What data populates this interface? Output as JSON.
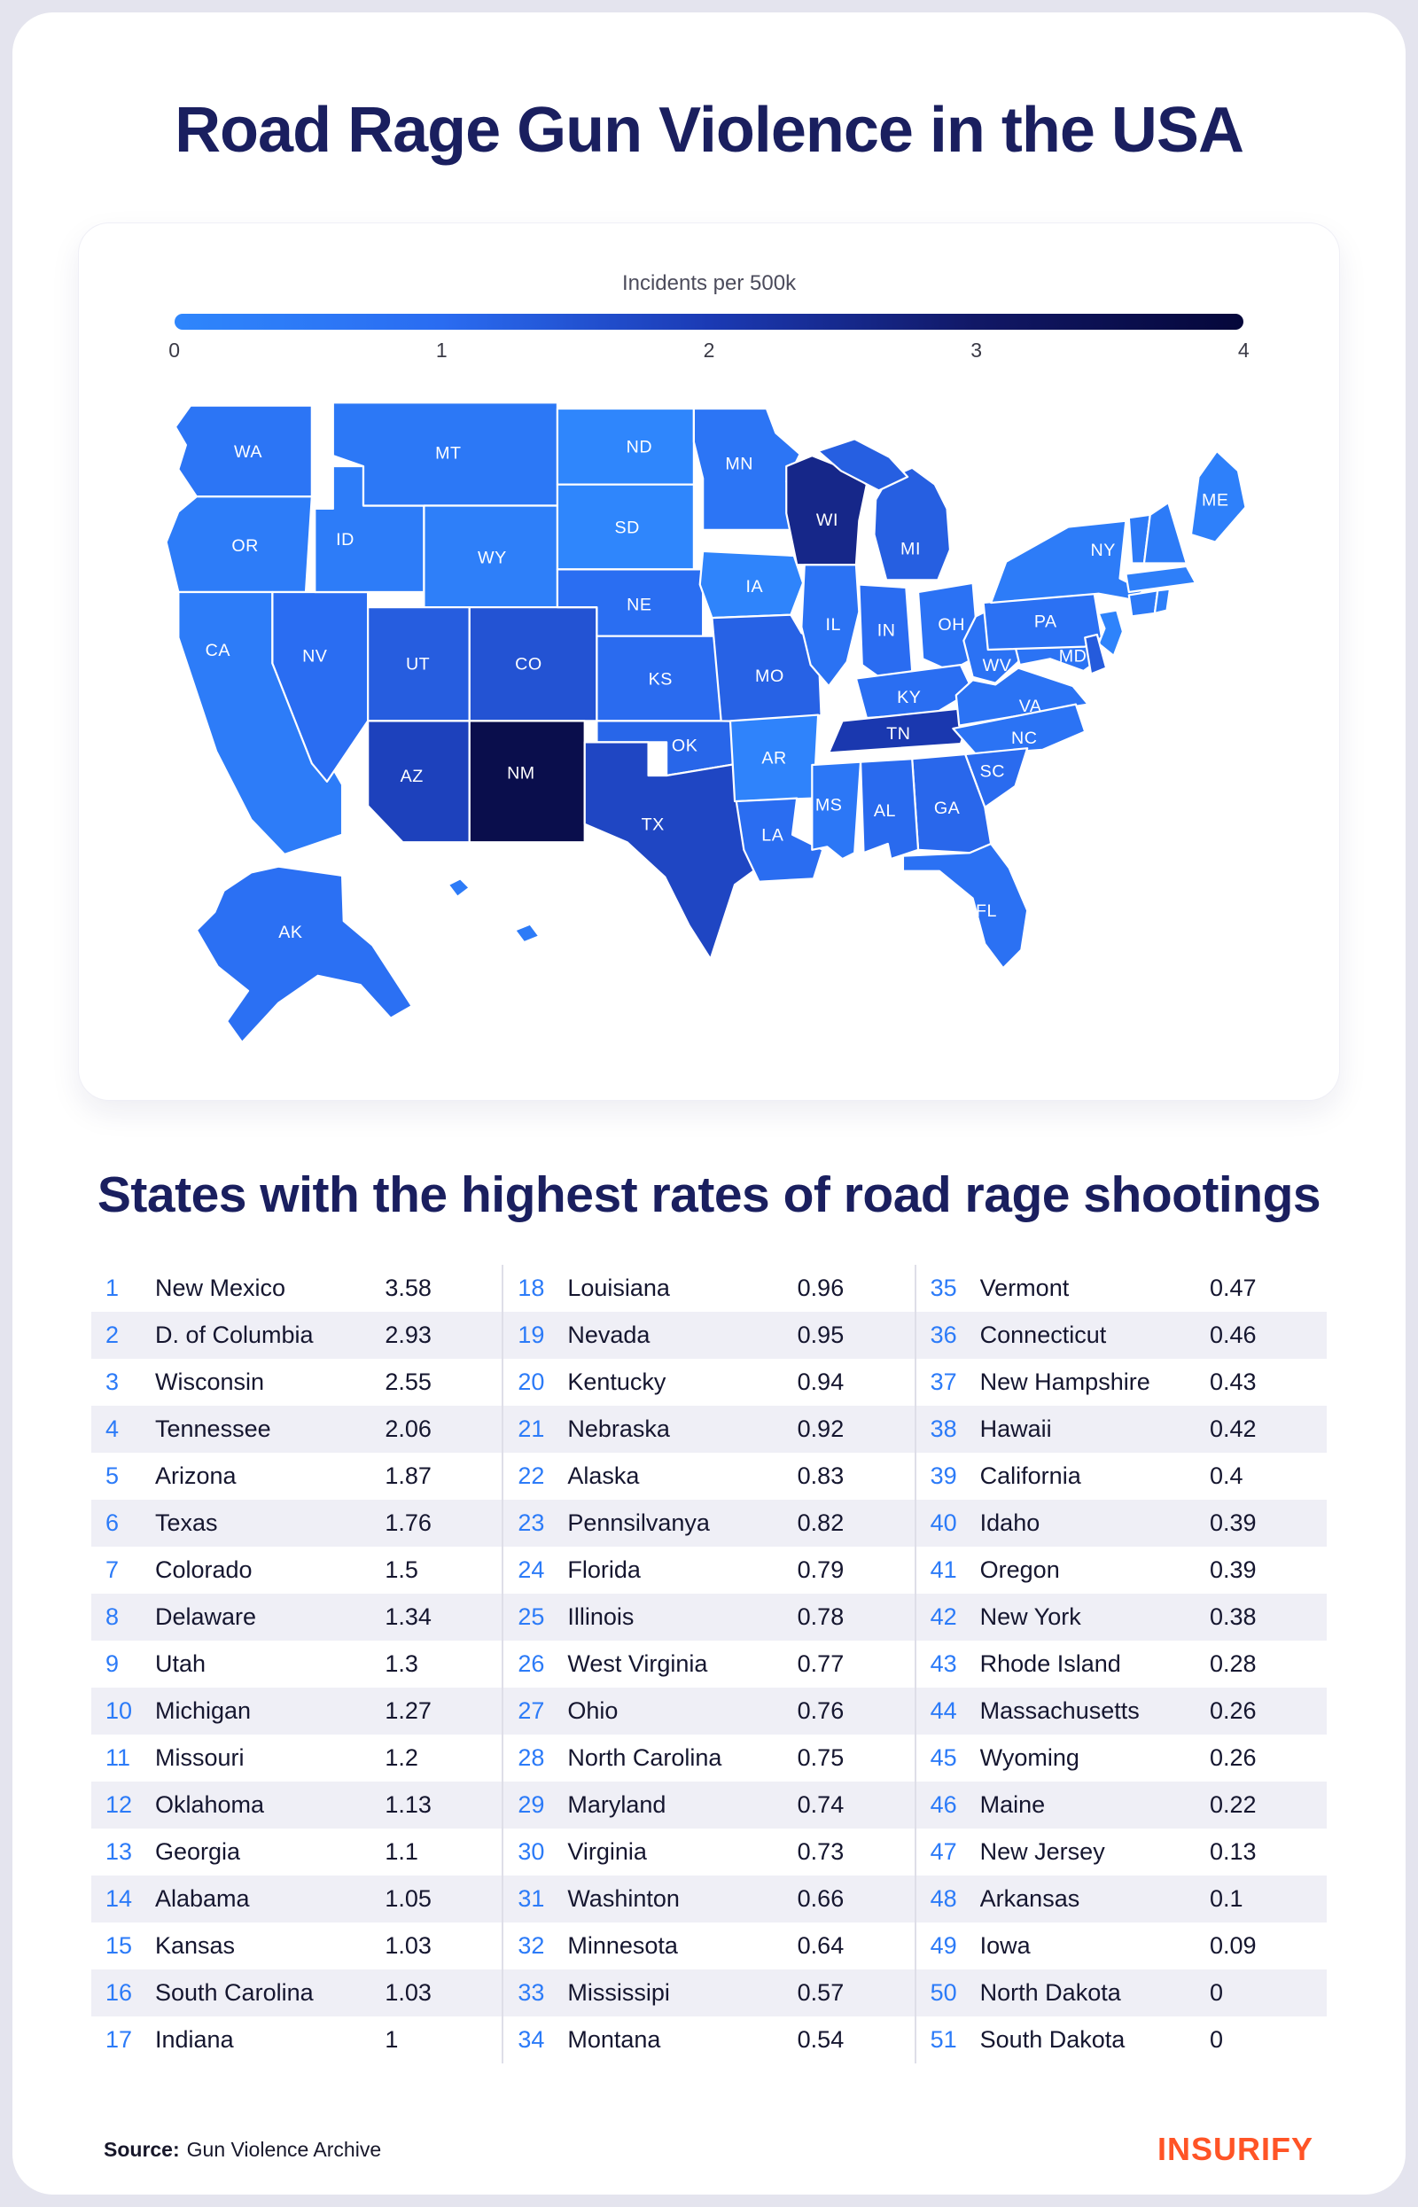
{
  "title": "Road Rage Gun Violence in the USA",
  "legend": {
    "title": "Incidents per 500k",
    "ticks": [
      "0",
      "1",
      "2",
      "3",
      "4"
    ]
  },
  "section_title": "States with the highest rates of road rage shootings",
  "footer": {
    "source_label": "Source:",
    "source_value": "Gun Violence Archive",
    "brand": "INSURIFY"
  },
  "chart_data": {
    "type": "choropleth_map_with_ranking_table",
    "title": "Road Rage Gun Violence in the USA",
    "legend_title": "Incidents per 500k",
    "unit": "incidents per 500k residents",
    "scale": {
      "min": 0,
      "max": 4,
      "ticks": [
        0,
        1,
        2,
        3,
        4
      ],
      "colors": [
        "#2F86FC",
        "#2A6CF1",
        "#1B3AB4",
        "#111866",
        "#05073A"
      ]
    },
    "rankings": [
      {
        "rank": 1,
        "state": "New Mexico",
        "abbr": "NM",
        "value": 3.58
      },
      {
        "rank": 2,
        "state": "D. of Columbia",
        "abbr": "DC",
        "value": 2.93
      },
      {
        "rank": 3,
        "state": "Wisconsin",
        "abbr": "WI",
        "value": 2.55
      },
      {
        "rank": 4,
        "state": "Tennessee",
        "abbr": "TN",
        "value": 2.06
      },
      {
        "rank": 5,
        "state": "Arizona",
        "abbr": "AZ",
        "value": 1.87
      },
      {
        "rank": 6,
        "state": "Texas",
        "abbr": "TX",
        "value": 1.76
      },
      {
        "rank": 7,
        "state": "Colorado",
        "abbr": "CO",
        "value": 1.5
      },
      {
        "rank": 8,
        "state": "Delaware",
        "abbr": "DE",
        "value": 1.34
      },
      {
        "rank": 9,
        "state": "Utah",
        "abbr": "UT",
        "value": 1.3
      },
      {
        "rank": 10,
        "state": "Michigan",
        "abbr": "MI",
        "value": 1.27
      },
      {
        "rank": 11,
        "state": "Missouri",
        "abbr": "MO",
        "value": 1.2
      },
      {
        "rank": 12,
        "state": "Oklahoma",
        "abbr": "OK",
        "value": 1.13
      },
      {
        "rank": 13,
        "state": "Georgia",
        "abbr": "GA",
        "value": 1.1
      },
      {
        "rank": 14,
        "state": "Alabama",
        "abbr": "AL",
        "value": 1.05
      },
      {
        "rank": 15,
        "state": "Kansas",
        "abbr": "KS",
        "value": 1.03
      },
      {
        "rank": 16,
        "state": "South Carolina",
        "abbr": "SC",
        "value": 1.03
      },
      {
        "rank": 17,
        "state": "Indiana",
        "abbr": "IN",
        "value": 1
      },
      {
        "rank": 18,
        "state": "Louisiana",
        "abbr": "LA",
        "value": 0.96
      },
      {
        "rank": 19,
        "state": "Nevada",
        "abbr": "NV",
        "value": 0.95
      },
      {
        "rank": 20,
        "state": "Kentucky",
        "abbr": "KY",
        "value": 0.94
      },
      {
        "rank": 21,
        "state": "Nebraska",
        "abbr": "NE",
        "value": 0.92
      },
      {
        "rank": 22,
        "state": "Alaska",
        "abbr": "AK",
        "value": 0.83
      },
      {
        "rank": 23,
        "state": "Pennsilvanya",
        "abbr": "PA",
        "value": 0.82
      },
      {
        "rank": 24,
        "state": "Florida",
        "abbr": "FL",
        "value": 0.79
      },
      {
        "rank": 25,
        "state": "Illinois",
        "abbr": "IL",
        "value": 0.78
      },
      {
        "rank": 26,
        "state": "West Virginia",
        "abbr": "WV",
        "value": 0.77
      },
      {
        "rank": 27,
        "state": "Ohio",
        "abbr": "OH",
        "value": 0.76
      },
      {
        "rank": 28,
        "state": "North Carolina",
        "abbr": "NC",
        "value": 0.75
      },
      {
        "rank": 29,
        "state": "Maryland",
        "abbr": "MD",
        "value": 0.74
      },
      {
        "rank": 30,
        "state": "Virginia",
        "abbr": "VA",
        "value": 0.73
      },
      {
        "rank": 31,
        "state": "Washinton",
        "abbr": "WA",
        "value": 0.66
      },
      {
        "rank": 32,
        "state": "Minnesota",
        "abbr": "MN",
        "value": 0.64
      },
      {
        "rank": 33,
        "state": "Mississipi",
        "abbr": "MS",
        "value": 0.57
      },
      {
        "rank": 34,
        "state": "Montana",
        "abbr": "MT",
        "value": 0.54
      },
      {
        "rank": 35,
        "state": "Vermont",
        "abbr": "VT",
        "value": 0.47
      },
      {
        "rank": 36,
        "state": "Connecticut",
        "abbr": "CT",
        "value": 0.46
      },
      {
        "rank": 37,
        "state": "New Hampshire",
        "abbr": "NH",
        "value": 0.43
      },
      {
        "rank": 38,
        "state": "Hawaii",
        "abbr": "HI",
        "value": 0.42
      },
      {
        "rank": 39,
        "state": "California",
        "abbr": "CA",
        "value": 0.4
      },
      {
        "rank": 40,
        "state": "Idaho",
        "abbr": "ID",
        "value": 0.39
      },
      {
        "rank": 41,
        "state": "Oregon",
        "abbr": "OR",
        "value": 0.39
      },
      {
        "rank": 42,
        "state": "New York",
        "abbr": "NY",
        "value": 0.38
      },
      {
        "rank": 43,
        "state": "Rhode Island",
        "abbr": "RI",
        "value": 0.28
      },
      {
        "rank": 44,
        "state": "Massachusetts",
        "abbr": "MA",
        "value": 0.26
      },
      {
        "rank": 45,
        "state": "Wyoming",
        "abbr": "WY",
        "value": 0.26
      },
      {
        "rank": 46,
        "state": "Maine",
        "abbr": "ME",
        "value": 0.22
      },
      {
        "rank": 47,
        "state": "New Jersey",
        "abbr": "NJ",
        "value": 0.13
      },
      {
        "rank": 48,
        "state": "Arkansas",
        "abbr": "AR",
        "value": 0.1
      },
      {
        "rank": 49,
        "state": "Iowa",
        "abbr": "IA",
        "value": 0.09
      },
      {
        "rank": 50,
        "state": "North Dakota",
        "abbr": "ND",
        "value": 0
      },
      {
        "rank": 51,
        "state": "South Dakota",
        "abbr": "SD",
        "value": 0
      }
    ]
  }
}
